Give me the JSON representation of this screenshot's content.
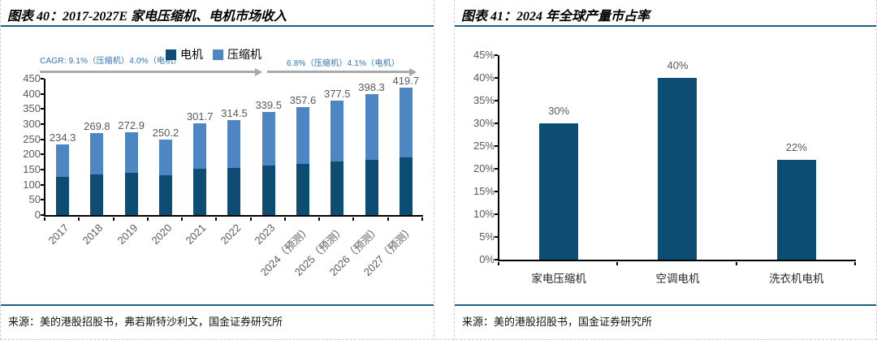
{
  "panels": {
    "left": {
      "title": "图表 40：2017-2027E 家电压缩机、电机市场收入",
      "cagr_left": "CAGR: 9.1%（压缩机）4.0%（电机）",
      "cagr_right": "6.8%（压缩机）4.1%（电机）",
      "legend": [
        {
          "key": "motor",
          "label": "电机",
          "color": "#0E4D73"
        },
        {
          "key": "compressor",
          "label": "压缩机",
          "color": "#4E86C4"
        }
      ],
      "chart_data": {
        "type": "bar",
        "stacked": true,
        "title": "2017-2027E 家电压缩机、电机市场收入",
        "categories": [
          "2017",
          "2018",
          "2019",
          "2020",
          "2021",
          "2022",
          "2023",
          "2024（预测）",
          "2025（预测）",
          "2026（预测）",
          "2027（预测）"
        ],
        "series": [
          {
            "key": "motor",
            "name": "电机",
            "color": "#0E4D73",
            "values": [
              127,
              135,
              138,
              130,
              152,
              156,
              163,
              169,
              177,
              182,
              189
            ]
          },
          {
            "key": "compressor",
            "name": "压缩机",
            "color": "#4E86C4",
            "values": [
              107.3,
              134.8,
              134.9,
              120.2,
              149.7,
              158.5,
              176.5,
              188.6,
              200.5,
              216.3,
              230.7
            ]
          }
        ],
        "totals": [
          234.3,
          269.8,
          272.9,
          250.2,
          301.7,
          314.5,
          339.5,
          357.6,
          377.5,
          398.3,
          419.7
        ],
        "total_labels": [
          "234.3",
          "269.8",
          "272.9",
          "250.2",
          "301.7",
          "314.5",
          "339.5",
          "357.6",
          "377.5",
          "398.3",
          "419.7"
        ],
        "ylim": [
          0,
          450
        ],
        "ytick_step": 50,
        "yticks": [
          "450",
          "400",
          "350",
          "300",
          "250",
          "200",
          "150",
          "100",
          "50",
          "0"
        ],
        "legend_position": "top",
        "grid": false
      },
      "source": "来源：美的港股招股书，弗若斯特沙利文，国金证券研究所"
    },
    "right": {
      "title": "图表 41：2024 年全球产量市占率",
      "chart_data": {
        "type": "bar",
        "stacked": false,
        "title": "2024 年全球产量市占率",
        "categories": [
          "家电压缩机",
          "空调电机",
          "洗衣机电机"
        ],
        "values": [
          30,
          40,
          22
        ],
        "value_labels": [
          "30%",
          "40%",
          "22%"
        ],
        "bar_color": "#0E4D73",
        "ylim": [
          0,
          45
        ],
        "ytick_step": 5,
        "yticks": [
          "45%",
          "40%",
          "35%",
          "30%",
          "25%",
          "20%",
          "15%",
          "10%",
          "5%",
          "0%"
        ],
        "grid": false
      },
      "source": "来源：美的港股招股书，国金证券研究所"
    }
  },
  "colors": {
    "accent_rule": "#1E5F83",
    "motor_bar": "#0E4D73",
    "compressor_bar": "#4E86C4",
    "annotation_blue": "#2E74B5",
    "arrow_gray": "#A9A9A9",
    "axis_label_gray": "#595959"
  }
}
